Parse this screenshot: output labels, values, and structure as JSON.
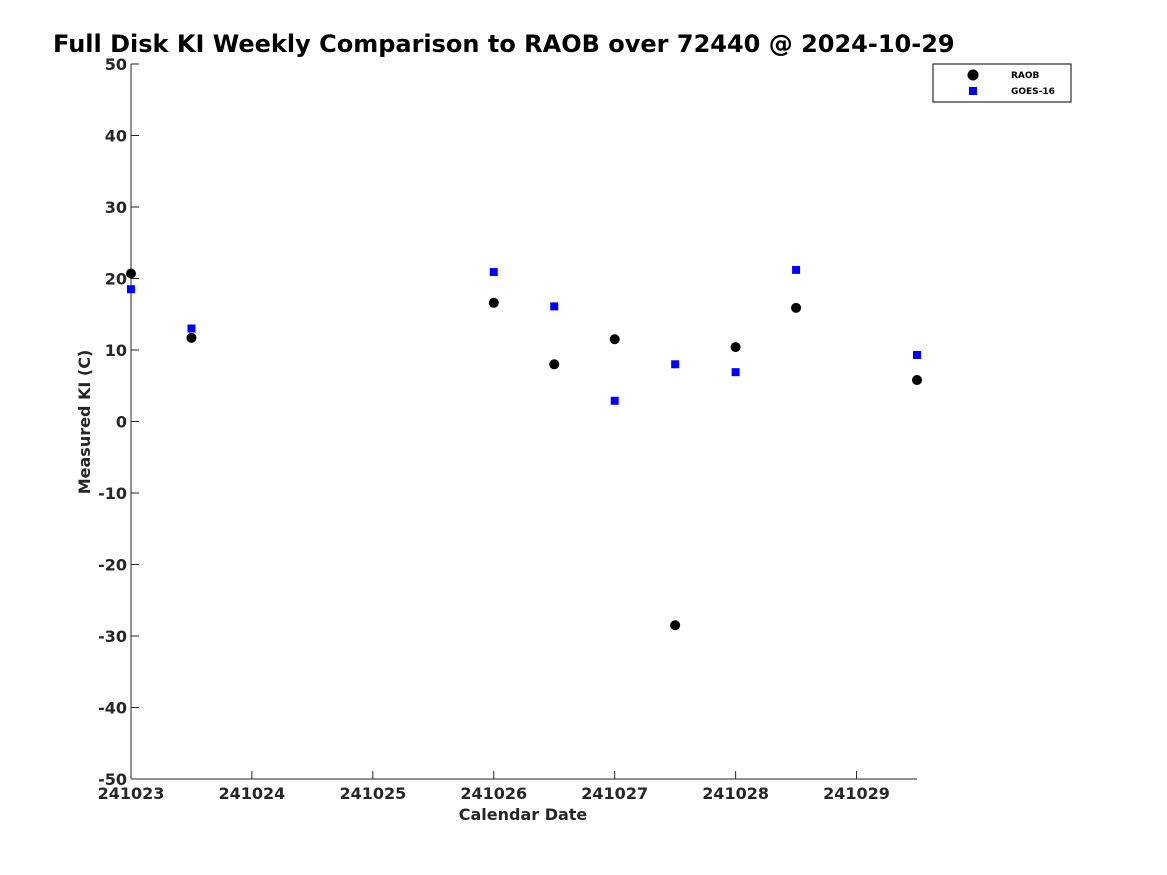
{
  "chart_data": {
    "type": "scatter",
    "title": "Full Disk KI Weekly Comparison to RAOB over 72440 @ 2024-10-29",
    "xlabel": "Calendar Date",
    "ylabel": "Measured KI (C)",
    "x_ticks": [
      "241023",
      "241024",
      "241025",
      "241026",
      "241027",
      "241028",
      "241029"
    ],
    "x_tick_values": [
      0,
      1,
      2,
      3,
      4,
      5,
      6
    ],
    "xlim": [
      0,
      6.5
    ],
    "ylim": [
      -50,
      50
    ],
    "y_ticks": [
      "50",
      "40",
      "30",
      "20",
      "10",
      "0",
      "-10",
      "-20",
      "-30",
      "-40",
      "-50"
    ],
    "y_tick_values": [
      50,
      40,
      30,
      20,
      10,
      0,
      -10,
      -20,
      -30,
      -40,
      -50
    ],
    "grid": false,
    "legend_position": "top-right",
    "series": [
      {
        "name": "RAOB",
        "marker": "circle",
        "color": "#000000",
        "x": [
          0,
          0.5,
          3,
          3.5,
          4,
          4.5,
          5,
          5.5,
          6.5
        ],
        "y": [
          20.7,
          11.7,
          16.6,
          8.0,
          11.5,
          -28.5,
          10.4,
          15.9,
          5.8
        ]
      },
      {
        "name": "GOES-16",
        "marker": "square",
        "color": "#0000ff",
        "x": [
          0,
          0.5,
          3,
          3.5,
          4,
          4.5,
          5,
          5.5,
          6.5
        ],
        "y": [
          18.5,
          13.0,
          20.9,
          16.1,
          2.9,
          8.0,
          6.9,
          21.2,
          9.3
        ]
      }
    ]
  }
}
